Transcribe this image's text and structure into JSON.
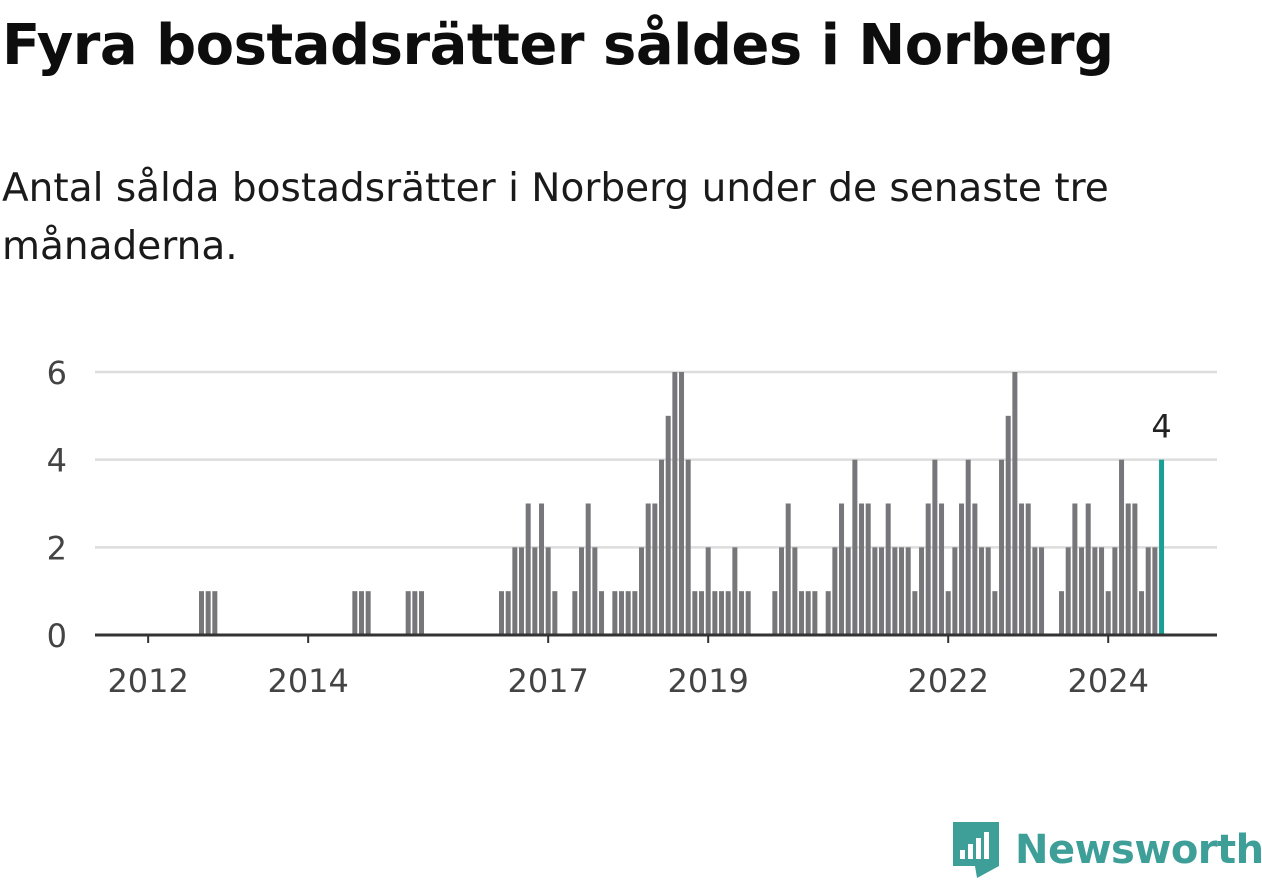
{
  "title": "Fyra bostadsrätter såldes i Norberg",
  "subtitle": "Antal sålda bostadsrätter i Norberg under de senaste tre månaderna.",
  "logo": {
    "text": "Newsworthy",
    "icon": "newsworthy-logo-icon",
    "color": "#3e9e98"
  },
  "colors": {
    "bar": "#77767b",
    "highlight": "#1a9e96",
    "grid": "#dddddd",
    "axis": "#333333"
  },
  "chart_data": {
    "type": "bar",
    "title": "",
    "xlabel": "",
    "ylabel": "",
    "ylim": [
      0,
      6
    ],
    "yticks": [
      0,
      2,
      4,
      6
    ],
    "grid": true,
    "x_start_month": "2011-04",
    "xtick_labels": [
      "2012",
      "2014",
      "2017",
      "2019",
      "2022",
      "2024"
    ],
    "xtick_months": [
      "2012-01",
      "2014-01",
      "2017-01",
      "2019-01",
      "2022-01",
      "2024-01"
    ],
    "values": [
      0,
      0,
      0,
      0,
      0,
      0,
      0,
      0,
      0,
      0,
      0,
      0,
      0,
      0,
      0,
      0,
      0,
      1,
      1,
      1,
      0,
      0,
      0,
      0,
      0,
      0,
      0,
      0,
      0,
      0,
      0,
      0,
      0,
      0,
      0,
      0,
      0,
      0,
      0,
      0,
      1,
      1,
      1,
      0,
      0,
      0,
      0,
      0,
      1,
      1,
      1,
      0,
      0,
      0,
      0,
      0,
      0,
      0,
      0,
      0,
      0,
      0,
      1,
      1,
      2,
      2,
      3,
      2,
      3,
      2,
      1,
      0,
      0,
      1,
      2,
      3,
      2,
      1,
      0,
      1,
      1,
      1,
      1,
      2,
      3,
      3,
      4,
      5,
      6,
      6,
      4,
      1,
      1,
      2,
      1,
      1,
      1,
      2,
      1,
      1,
      0,
      0,
      0,
      1,
      2,
      3,
      2,
      1,
      1,
      1,
      0,
      1,
      2,
      3,
      2,
      4,
      3,
      3,
      2,
      2,
      3,
      2,
      2,
      2,
      1,
      2,
      3,
      4,
      3,
      1,
      2,
      3,
      4,
      3,
      2,
      2,
      1,
      4,
      5,
      6,
      3,
      3,
      2,
      2,
      0,
      0,
      1,
      2,
      3,
      2,
      3,
      2,
      2,
      1,
      2,
      4,
      3,
      3,
      1,
      2,
      2,
      4
    ],
    "highlight": {
      "month": "2024-09",
      "value": 4,
      "label": "4"
    }
  }
}
